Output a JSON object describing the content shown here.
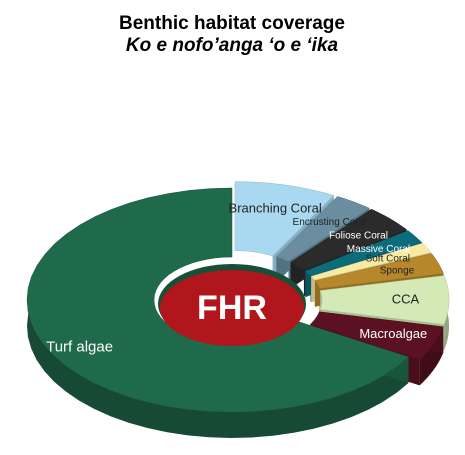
{
  "chart_data": {
    "type": "donut3d",
    "title": "Benthic habitat coverage",
    "subtitle": "Ko e nofo’anga ‘o e ‘ika",
    "center_label": "FHR",
    "categories": [
      "Branching Coral",
      "Encrusting Coral",
      "Foliose Coral",
      "Massive Coral",
      "Soft Coral",
      "Sponge",
      "CCA",
      "Macroalgae",
      "Turf algae"
    ],
    "values": [
      8,
      3,
      4,
      2,
      1.5,
      3,
      7,
      5,
      66.5
    ],
    "colors": [
      "#a9d9f1",
      "#6a8ea0",
      "#2b2b2b",
      "#0b6c7c",
      "#f7eba2",
      "#b7872b",
      "#d3eab6",
      "#5b1121",
      "#1f6a4a"
    ],
    "center_color": "#b0161b"
  }
}
